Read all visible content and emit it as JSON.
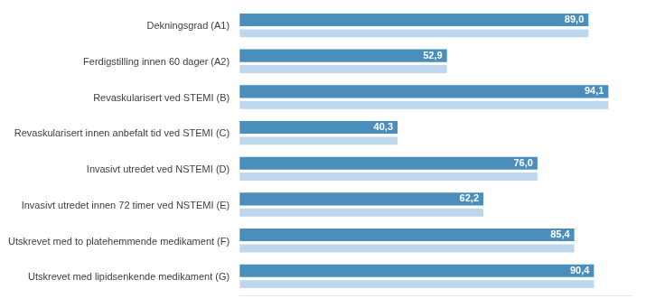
{
  "chart_data": {
    "type": "bar",
    "orientation": "horizontal",
    "categories": [
      "Dekningsgrad (A1)",
      "Ferdigstilling innen 60 dager (A2)",
      "Revaskularisert ved STEMI (B)",
      "Revaskularisert innen anbefalt tid ved STEMI (C)",
      "Invasivt utredet ved NSTEMI (D)",
      "Invasivt utredet innen 72 timer ved NSTEMI (E)",
      "Utskrevet med to platehemmende medikament (F)",
      "Utskrevet med lipidsenkende medikament (G)"
    ],
    "series": [
      {
        "color": "#4A8EBC",
        "values": [
          89.0,
          52.9,
          94.1,
          40.3,
          76.0,
          62.2,
          85.4,
          90.4
        ],
        "value_labels": [
          "89,0",
          "52,9",
          "94,1",
          "40,3",
          "76,0",
          "62,2",
          "85,4",
          "90,4"
        ]
      },
      {
        "color": "#BDD7EE",
        "values": [
          89.0,
          52.9,
          94.1,
          40.3,
          76.0,
          62.2,
          85.4,
          90.4
        ]
      }
    ],
    "xlim": [
      0,
      100
    ],
    "grid": false,
    "tick_labels": "y"
  }
}
